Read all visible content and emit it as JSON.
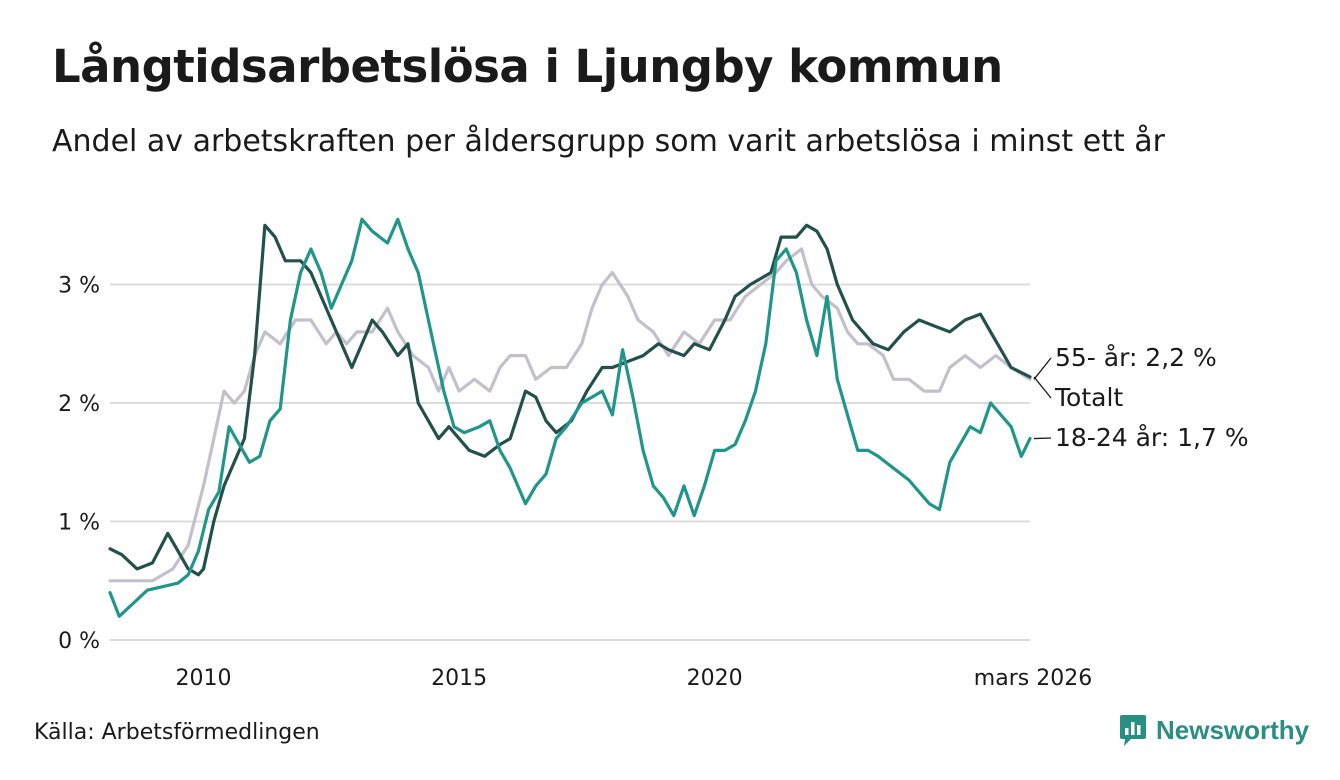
{
  "title": "Långtidsarbetslösa i Ljungby kommun",
  "subtitle": "Andel av arbetskraften per åldersgrupp som varit arbetslösa i minst ett år",
  "source": "Källa: Arbetsförmedlingen",
  "brand": {
    "name": "Newsworthy",
    "color": "#2a8f83",
    "icon": "bar-chart-logo-icon"
  },
  "chart_data": {
    "type": "line",
    "title": "Långtidsarbetslösa i Ljungby kommun",
    "xlabel": "",
    "ylabel": "",
    "x_range": [
      2008.17,
      2026.17
    ],
    "ylim": [
      0,
      3.7
    ],
    "y_ticks": [
      0,
      1,
      2,
      3
    ],
    "y_tick_labels": [
      "0 %",
      "1 %",
      "2 %",
      "3 %"
    ],
    "x_ticks": [
      2010,
      2015,
      2020,
      2026.17
    ],
    "x_tick_labels": [
      "2010",
      "2015",
      "2020",
      "mars 2026"
    ],
    "grid": true,
    "series": [
      {
        "name": "55- år",
        "end_label": "55- år: 2,2 %",
        "color": "#c3c0cc",
        "points": [
          [
            2008.17,
            0.5
          ],
          [
            2008.7,
            0.5
          ],
          [
            2009.0,
            0.5
          ],
          [
            2009.4,
            0.6
          ],
          [
            2009.7,
            0.8
          ],
          [
            2010.0,
            1.3
          ],
          [
            2010.2,
            1.7
          ],
          [
            2010.4,
            2.1
          ],
          [
            2010.6,
            2.0
          ],
          [
            2010.8,
            2.1
          ],
          [
            2011.0,
            2.4
          ],
          [
            2011.2,
            2.6
          ],
          [
            2011.5,
            2.5
          ],
          [
            2011.8,
            2.7
          ],
          [
            2012.1,
            2.7
          ],
          [
            2012.4,
            2.5
          ],
          [
            2012.6,
            2.6
          ],
          [
            2012.8,
            2.5
          ],
          [
            2013.0,
            2.6
          ],
          [
            2013.3,
            2.6
          ],
          [
            2013.6,
            2.8
          ],
          [
            2013.8,
            2.6
          ],
          [
            2014.1,
            2.4
          ],
          [
            2014.4,
            2.3
          ],
          [
            2014.6,
            2.1
          ],
          [
            2014.8,
            2.3
          ],
          [
            2015.0,
            2.1
          ],
          [
            2015.3,
            2.2
          ],
          [
            2015.6,
            2.1
          ],
          [
            2015.8,
            2.3
          ],
          [
            2016.0,
            2.4
          ],
          [
            2016.3,
            2.4
          ],
          [
            2016.5,
            2.2
          ],
          [
            2016.8,
            2.3
          ],
          [
            2017.1,
            2.3
          ],
          [
            2017.4,
            2.5
          ],
          [
            2017.6,
            2.8
          ],
          [
            2017.8,
            3.0
          ],
          [
            2018.0,
            3.1
          ],
          [
            2018.3,
            2.9
          ],
          [
            2018.5,
            2.7
          ],
          [
            2018.8,
            2.6
          ],
          [
            2019.1,
            2.4
          ],
          [
            2019.4,
            2.6
          ],
          [
            2019.7,
            2.5
          ],
          [
            2020.0,
            2.7
          ],
          [
            2020.3,
            2.7
          ],
          [
            2020.6,
            2.9
          ],
          [
            2020.9,
            3.0
          ],
          [
            2021.2,
            3.1
          ],
          [
            2021.4,
            3.2
          ],
          [
            2021.7,
            3.3
          ],
          [
            2021.9,
            3.0
          ],
          [
            2022.1,
            2.9
          ],
          [
            2022.4,
            2.8
          ],
          [
            2022.6,
            2.6
          ],
          [
            2022.8,
            2.5
          ],
          [
            2023.0,
            2.5
          ],
          [
            2023.3,
            2.4
          ],
          [
            2023.5,
            2.2
          ],
          [
            2023.8,
            2.2
          ],
          [
            2024.1,
            2.1
          ],
          [
            2024.4,
            2.1
          ],
          [
            2024.6,
            2.3
          ],
          [
            2024.9,
            2.4
          ],
          [
            2025.2,
            2.3
          ],
          [
            2025.5,
            2.4
          ],
          [
            2025.8,
            2.3
          ],
          [
            2026.17,
            2.2
          ]
        ]
      },
      {
        "name": "Totalt",
        "end_label": "Totalt",
        "color": "#24504c",
        "points": [
          [
            2008.17,
            0.77
          ],
          [
            2008.4,
            0.72
          ],
          [
            2008.7,
            0.6
          ],
          [
            2009.0,
            0.65
          ],
          [
            2009.3,
            0.9
          ],
          [
            2009.5,
            0.75
          ],
          [
            2009.7,
            0.6
          ],
          [
            2009.9,
            0.55
          ],
          [
            2010.0,
            0.6
          ],
          [
            2010.2,
            1.0
          ],
          [
            2010.4,
            1.3
          ],
          [
            2010.6,
            1.5
          ],
          [
            2010.8,
            1.7
          ],
          [
            2011.0,
            2.4
          ],
          [
            2011.2,
            3.5
          ],
          [
            2011.4,
            3.4
          ],
          [
            2011.6,
            3.2
          ],
          [
            2011.9,
            3.2
          ],
          [
            2012.1,
            3.1
          ],
          [
            2012.3,
            2.9
          ],
          [
            2012.6,
            2.6
          ],
          [
            2012.9,
            2.3
          ],
          [
            2013.1,
            2.5
          ],
          [
            2013.3,
            2.7
          ],
          [
            2013.5,
            2.6
          ],
          [
            2013.8,
            2.4
          ],
          [
            2014.0,
            2.5
          ],
          [
            2014.2,
            2.0
          ],
          [
            2014.4,
            1.85
          ],
          [
            2014.6,
            1.7
          ],
          [
            2014.8,
            1.8
          ],
          [
            2015.0,
            1.7
          ],
          [
            2015.2,
            1.6
          ],
          [
            2015.5,
            1.55
          ],
          [
            2015.8,
            1.65
          ],
          [
            2016.0,
            1.7
          ],
          [
            2016.3,
            2.1
          ],
          [
            2016.5,
            2.05
          ],
          [
            2016.7,
            1.85
          ],
          [
            2016.9,
            1.75
          ],
          [
            2017.2,
            1.85
          ],
          [
            2017.5,
            2.1
          ],
          [
            2017.8,
            2.3
          ],
          [
            2018.0,
            2.3
          ],
          [
            2018.3,
            2.35
          ],
          [
            2018.6,
            2.4
          ],
          [
            2018.9,
            2.5
          ],
          [
            2019.1,
            2.45
          ],
          [
            2019.4,
            2.4
          ],
          [
            2019.6,
            2.5
          ],
          [
            2019.9,
            2.45
          ],
          [
            2020.2,
            2.7
          ],
          [
            2020.4,
            2.9
          ],
          [
            2020.7,
            3.0
          ],
          [
            2020.9,
            3.05
          ],
          [
            2021.1,
            3.1
          ],
          [
            2021.3,
            3.4
          ],
          [
            2021.6,
            3.4
          ],
          [
            2021.8,
            3.5
          ],
          [
            2022.0,
            3.45
          ],
          [
            2022.2,
            3.3
          ],
          [
            2022.4,
            3.0
          ],
          [
            2022.7,
            2.7
          ],
          [
            2022.9,
            2.6
          ],
          [
            2023.1,
            2.5
          ],
          [
            2023.4,
            2.45
          ],
          [
            2023.7,
            2.6
          ],
          [
            2024.0,
            2.7
          ],
          [
            2024.3,
            2.65
          ],
          [
            2024.6,
            2.6
          ],
          [
            2024.9,
            2.7
          ],
          [
            2025.2,
            2.75
          ],
          [
            2025.4,
            2.6
          ],
          [
            2025.6,
            2.45
          ],
          [
            2025.8,
            2.3
          ],
          [
            2026.17,
            2.22
          ]
        ]
      },
      {
        "name": "18-24 år",
        "end_label": "18-24 år: 1,7 %",
        "color": "#20968a",
        "points": [
          [
            2008.17,
            0.4
          ],
          [
            2008.35,
            0.2
          ],
          [
            2008.6,
            0.3
          ],
          [
            2008.9,
            0.42
          ],
          [
            2009.2,
            0.45
          ],
          [
            2009.5,
            0.48
          ],
          [
            2009.7,
            0.55
          ],
          [
            2009.9,
            0.75
          ],
          [
            2010.1,
            1.1
          ],
          [
            2010.3,
            1.25
          ],
          [
            2010.5,
            1.8
          ],
          [
            2010.7,
            1.65
          ],
          [
            2010.9,
            1.5
          ],
          [
            2011.1,
            1.55
          ],
          [
            2011.3,
            1.85
          ],
          [
            2011.5,
            1.95
          ],
          [
            2011.7,
            2.7
          ],
          [
            2011.9,
            3.1
          ],
          [
            2012.1,
            3.3
          ],
          [
            2012.3,
            3.1
          ],
          [
            2012.5,
            2.8
          ],
          [
            2012.7,
            3.0
          ],
          [
            2012.9,
            3.2
          ],
          [
            2013.1,
            3.55
          ],
          [
            2013.3,
            3.45
          ],
          [
            2013.6,
            3.35
          ],
          [
            2013.8,
            3.55
          ],
          [
            2014.0,
            3.3
          ],
          [
            2014.2,
            3.1
          ],
          [
            2014.5,
            2.5
          ],
          [
            2014.7,
            2.1
          ],
          [
            2014.9,
            1.8
          ],
          [
            2015.1,
            1.75
          ],
          [
            2015.4,
            1.8
          ],
          [
            2015.6,
            1.85
          ],
          [
            2015.8,
            1.6
          ],
          [
            2016.0,
            1.45
          ],
          [
            2016.3,
            1.15
          ],
          [
            2016.5,
            1.3
          ],
          [
            2016.7,
            1.4
          ],
          [
            2016.9,
            1.7
          ],
          [
            2017.1,
            1.8
          ],
          [
            2017.4,
            2.0
          ],
          [
            2017.6,
            2.05
          ],
          [
            2017.8,
            2.1
          ],
          [
            2018.0,
            1.9
          ],
          [
            2018.2,
            2.45
          ],
          [
            2018.4,
            2.05
          ],
          [
            2018.6,
            1.6
          ],
          [
            2018.8,
            1.3
          ],
          [
            2019.0,
            1.2
          ],
          [
            2019.2,
            1.05
          ],
          [
            2019.4,
            1.3
          ],
          [
            2019.6,
            1.05
          ],
          [
            2019.8,
            1.3
          ],
          [
            2020.0,
            1.6
          ],
          [
            2020.2,
            1.6
          ],
          [
            2020.4,
            1.65
          ],
          [
            2020.6,
            1.85
          ],
          [
            2020.8,
            2.1
          ],
          [
            2021.0,
            2.5
          ],
          [
            2021.2,
            3.2
          ],
          [
            2021.4,
            3.3
          ],
          [
            2021.6,
            3.1
          ],
          [
            2021.8,
            2.7
          ],
          [
            2022.0,
            2.4
          ],
          [
            2022.2,
            2.9
          ],
          [
            2022.4,
            2.2
          ],
          [
            2022.6,
            1.9
          ],
          [
            2022.8,
            1.6
          ],
          [
            2023.0,
            1.6
          ],
          [
            2023.2,
            1.55
          ],
          [
            2023.5,
            1.45
          ],
          [
            2023.8,
            1.35
          ],
          [
            2024.0,
            1.25
          ],
          [
            2024.2,
            1.15
          ],
          [
            2024.4,
            1.1
          ],
          [
            2024.6,
            1.5
          ],
          [
            2024.8,
            1.65
          ],
          [
            2025.0,
            1.8
          ],
          [
            2025.2,
            1.75
          ],
          [
            2025.4,
            2.0
          ],
          [
            2025.6,
            1.9
          ],
          [
            2025.8,
            1.8
          ],
          [
            2026.0,
            1.55
          ],
          [
            2026.17,
            1.7
          ]
        ]
      }
    ]
  }
}
